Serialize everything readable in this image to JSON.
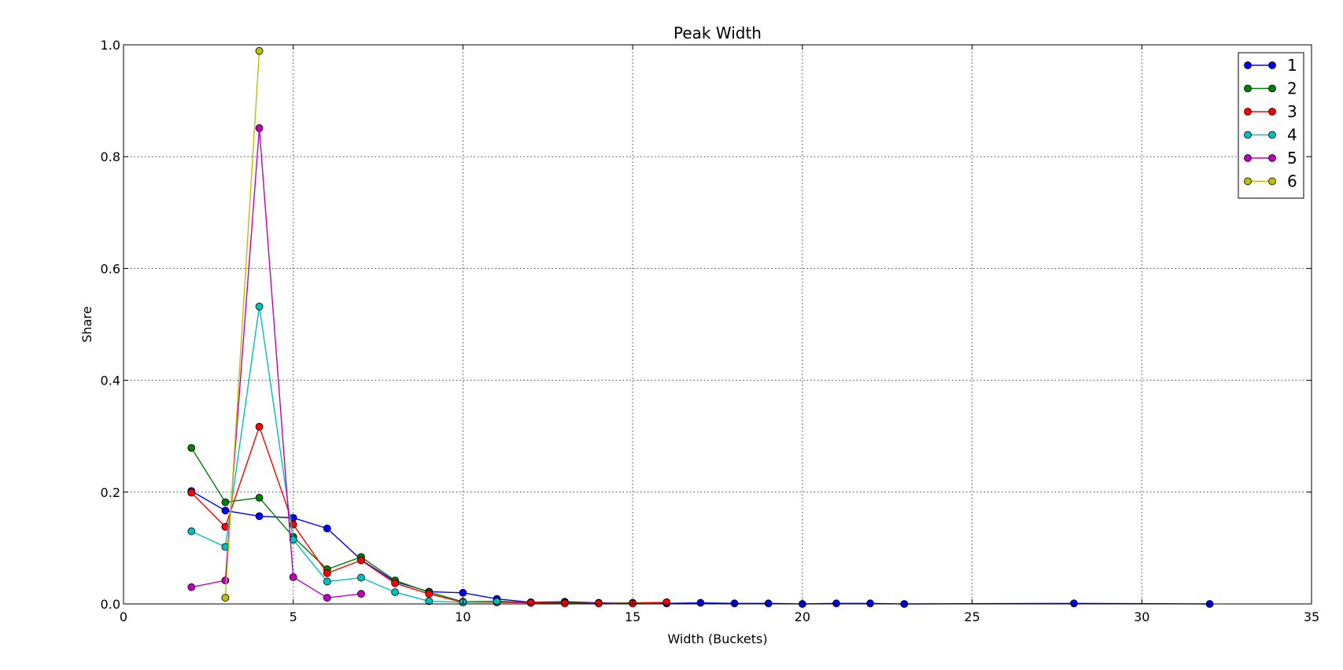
{
  "chart_data": {
    "type": "line",
    "title": "Peak Width",
    "xlabel": "Width (Buckets)",
    "ylabel": "Share",
    "xlim": [
      0,
      35
    ],
    "ylim": [
      0,
      1.0
    ],
    "xticks": [
      0,
      5,
      10,
      15,
      20,
      25,
      30,
      35
    ],
    "yticks": [
      0.0,
      0.2,
      0.4,
      0.6,
      0.8,
      1.0
    ],
    "xtick_labels": [
      "0",
      "5",
      "10",
      "15",
      "20",
      "25",
      "30",
      "35"
    ],
    "ytick_labels": [
      "0.0",
      "0.2",
      "0.4",
      "0.6",
      "0.8",
      "1.0"
    ],
    "grid": true,
    "legend_position": "top-right",
    "series": [
      {
        "name": "1",
        "color": "#0000ff",
        "points": [
          [
            2,
            0.202
          ],
          [
            3,
            0.167
          ],
          [
            4,
            0.157
          ],
          [
            5,
            0.154
          ],
          [
            6,
            0.135
          ],
          [
            7,
            0.079
          ],
          [
            8,
            0.04
          ],
          [
            9,
            0.022
          ],
          [
            10,
            0.02
          ],
          [
            11,
            0.009
          ],
          [
            12,
            0.003
          ],
          [
            13,
            0.004
          ],
          [
            14,
            0.002
          ],
          [
            15,
            0.001
          ],
          [
            16,
            0.001
          ],
          [
            17,
            0.002
          ],
          [
            18,
            0.001
          ],
          [
            19,
            0.001
          ],
          [
            20,
            0.0
          ],
          [
            21,
            0.001
          ],
          [
            22,
            0.001
          ],
          [
            23,
            0.0
          ],
          [
            28,
            0.001
          ],
          [
            32,
            0.0
          ]
        ]
      },
      {
        "name": "2",
        "color": "#008000",
        "points": [
          [
            2,
            0.279
          ],
          [
            3,
            0.182
          ],
          [
            4,
            0.19
          ],
          [
            5,
            0.12
          ],
          [
            6,
            0.062
          ],
          [
            7,
            0.084
          ],
          [
            8,
            0.042
          ],
          [
            9,
            0.021
          ],
          [
            10,
            0.004
          ],
          [
            11,
            0.005
          ],
          [
            12,
            0.002
          ],
          [
            13,
            0.002
          ],
          [
            14,
            0.001
          ],
          [
            15,
            0.002
          ],
          [
            16,
            0.003
          ]
        ]
      },
      {
        "name": "3",
        "color": "#ff0000",
        "points": [
          [
            2,
            0.199
          ],
          [
            3,
            0.138
          ],
          [
            4,
            0.317
          ],
          [
            5,
            0.142
          ],
          [
            6,
            0.055
          ],
          [
            7,
            0.078
          ],
          [
            8,
            0.037
          ],
          [
            9,
            0.018
          ],
          [
            10,
            0.003
          ],
          [
            11,
            0.003
          ],
          [
            12,
            0.002
          ],
          [
            13,
            0.001
          ],
          [
            14,
            0.001
          ],
          [
            15,
            0.001
          ],
          [
            16,
            0.003
          ]
        ]
      },
      {
        "name": "4",
        "color": "#00bfbf",
        "points": [
          [
            2,
            0.13
          ],
          [
            3,
            0.102
          ],
          [
            4,
            0.532
          ],
          [
            5,
            0.115
          ],
          [
            6,
            0.04
          ],
          [
            7,
            0.047
          ],
          [
            8,
            0.021
          ],
          [
            9,
            0.005
          ],
          [
            10,
            0.003
          ],
          [
            11,
            0.004
          ]
        ]
      },
      {
        "name": "5",
        "color": "#bf00bf",
        "points": [
          [
            2,
            0.03
          ],
          [
            3,
            0.042
          ],
          [
            4,
            0.851
          ],
          [
            5,
            0.048
          ],
          [
            6,
            0.011
          ],
          [
            7,
            0.018
          ]
        ]
      },
      {
        "name": "6",
        "color": "#bfbf00",
        "points": [
          [
            3,
            0.011
          ],
          [
            4,
            0.989
          ]
        ]
      }
    ]
  }
}
